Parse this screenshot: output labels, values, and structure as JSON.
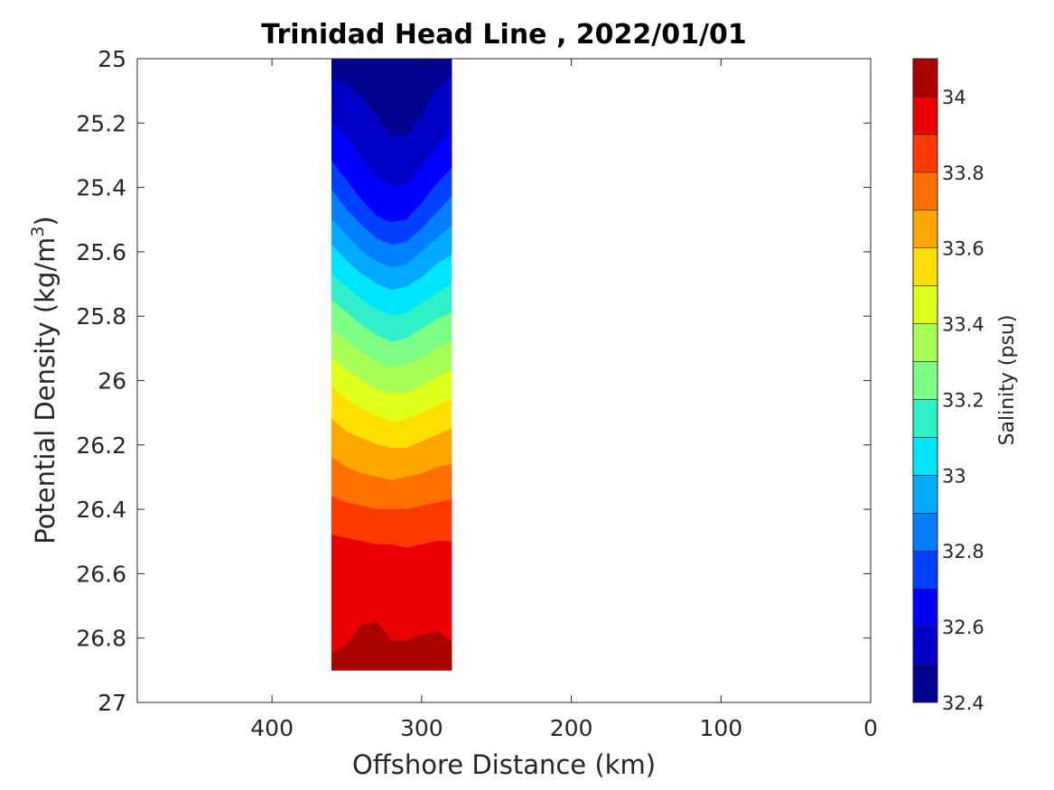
{
  "chart_data": {
    "type": "heatmap",
    "subtype": "filled-contour",
    "title": "Trinidad Head Line , 2022/01/01",
    "xlabel": "Offshore Distance (km)",
    "ylabel_main": "Potential Density (kg/m",
    "ylabel_sup": "3",
    "ylabel_close": ")",
    "xlim": [
      490,
      0
    ],
    "x_reversed": true,
    "ylim": [
      25,
      27
    ],
    "y_reversed": true,
    "x_ticks": [
      400,
      300,
      200,
      100,
      0
    ],
    "x_tick_labels": [
      "400",
      "300",
      "200",
      "100",
      "0"
    ],
    "y_ticks": [
      25,
      25.2,
      25.4,
      25.6,
      25.8,
      26,
      26.2,
      26.4,
      26.6,
      26.8,
      27
    ],
    "y_tick_labels": [
      "25",
      "25.2",
      "25.4",
      "25.6",
      "25.8",
      "26",
      "26.2",
      "26.4",
      "26.6",
      "26.8",
      "27"
    ],
    "data_extent": {
      "x": [
        360,
        280
      ],
      "y": [
        25,
        26.9
      ]
    },
    "colorbar": {
      "label": "Salinity (psu)",
      "range": [
        32.4,
        34.1
      ],
      "ticks": [
        32.4,
        32.6,
        32.8,
        33,
        33.2,
        33.4,
        33.6,
        33.8,
        34
      ],
      "tick_labels": [
        "32.4",
        "32.6",
        "32.8",
        "33",
        "33.2",
        "33.4",
        "33.6",
        "33.8",
        "34"
      ],
      "levels": [
        32.4,
        32.5,
        32.6,
        32.7,
        32.8,
        32.9,
        33.0,
        33.1,
        33.2,
        33.3,
        33.4,
        33.5,
        33.6,
        33.7,
        33.8,
        33.9,
        34.0,
        34.1
      ],
      "colors": [
        "#00008f",
        "#0000c8",
        "#0000ff",
        "#0040ff",
        "#0080ff",
        "#00aaff",
        "#00e5ff",
        "#2ff0c8",
        "#7cff84",
        "#a8ff55",
        "#e0ff1a",
        "#ffe000",
        "#ffa600",
        "#ff7000",
        "#ff3a00",
        "#ea0000",
        "#aa0000"
      ]
    },
    "grid": false,
    "salinity_boundaries": [
      {
        "level": 32.5,
        "points": [
          [
            360,
            25.06
          ],
          [
            350,
            25.08
          ],
          [
            340,
            25.12
          ],
          [
            330,
            25.18
          ],
          [
            320,
            25.24
          ],
          [
            310,
            25.24
          ],
          [
            300,
            25.18
          ],
          [
            290,
            25.1
          ],
          [
            280,
            25.05
          ]
        ]
      },
      {
        "level": 32.6,
        "points": [
          [
            360,
            25.2
          ],
          [
            350,
            25.25
          ],
          [
            340,
            25.31
          ],
          [
            330,
            25.37
          ],
          [
            320,
            25.4
          ],
          [
            310,
            25.39
          ],
          [
            300,
            25.34
          ],
          [
            290,
            25.28
          ],
          [
            280,
            25.22
          ]
        ]
      },
      {
        "level": 32.7,
        "points": [
          [
            360,
            25.32
          ],
          [
            350,
            25.38
          ],
          [
            340,
            25.44
          ],
          [
            330,
            25.49
          ],
          [
            320,
            25.51
          ],
          [
            310,
            25.5
          ],
          [
            300,
            25.45
          ],
          [
            290,
            25.39
          ],
          [
            280,
            25.34
          ]
        ]
      },
      {
        "level": 32.8,
        "points": [
          [
            360,
            25.41
          ],
          [
            350,
            25.47
          ],
          [
            340,
            25.52
          ],
          [
            330,
            25.56
          ],
          [
            320,
            25.58
          ],
          [
            310,
            25.57
          ],
          [
            300,
            25.53
          ],
          [
            290,
            25.48
          ],
          [
            280,
            25.43
          ]
        ]
      },
      {
        "level": 32.9,
        "points": [
          [
            360,
            25.5
          ],
          [
            350,
            25.55
          ],
          [
            340,
            25.6
          ],
          [
            330,
            25.63
          ],
          [
            320,
            25.65
          ],
          [
            310,
            25.64
          ],
          [
            300,
            25.6
          ],
          [
            290,
            25.56
          ],
          [
            280,
            25.52
          ]
        ]
      },
      {
        "level": 33.0,
        "points": [
          [
            360,
            25.58
          ],
          [
            350,
            25.63
          ],
          [
            340,
            25.67
          ],
          [
            330,
            25.7
          ],
          [
            320,
            25.72
          ],
          [
            310,
            25.71
          ],
          [
            300,
            25.68
          ],
          [
            290,
            25.64
          ],
          [
            280,
            25.61
          ]
        ]
      },
      {
        "level": 33.1,
        "points": [
          [
            360,
            25.67
          ],
          [
            350,
            25.71
          ],
          [
            340,
            25.75
          ],
          [
            330,
            25.78
          ],
          [
            320,
            25.8
          ],
          [
            310,
            25.79
          ],
          [
            300,
            25.76
          ],
          [
            290,
            25.73
          ],
          [
            280,
            25.7
          ]
        ]
      },
      {
        "level": 33.2,
        "points": [
          [
            360,
            25.75
          ],
          [
            350,
            25.79
          ],
          [
            340,
            25.83
          ],
          [
            330,
            25.86
          ],
          [
            320,
            25.88
          ],
          [
            310,
            25.87
          ],
          [
            300,
            25.84
          ],
          [
            290,
            25.81
          ],
          [
            280,
            25.79
          ]
        ]
      },
      {
        "level": 33.3,
        "points": [
          [
            360,
            25.84
          ],
          [
            350,
            25.88
          ],
          [
            340,
            25.91
          ],
          [
            330,
            25.94
          ],
          [
            320,
            25.96
          ],
          [
            310,
            25.95
          ],
          [
            300,
            25.93
          ],
          [
            290,
            25.9
          ],
          [
            280,
            25.88
          ]
        ]
      },
      {
        "level": 33.4,
        "points": [
          [
            360,
            25.93
          ],
          [
            350,
            25.97
          ],
          [
            340,
            26.0
          ],
          [
            330,
            26.03
          ],
          [
            320,
            26.04
          ],
          [
            310,
            26.04
          ],
          [
            300,
            26.02
          ],
          [
            290,
            25.99
          ],
          [
            280,
            25.97
          ]
        ]
      },
      {
        "level": 33.5,
        "points": [
          [
            360,
            26.02
          ],
          [
            350,
            26.06
          ],
          [
            340,
            26.09
          ],
          [
            330,
            26.11
          ],
          [
            320,
            26.13
          ],
          [
            310,
            26.12
          ],
          [
            300,
            26.1
          ],
          [
            290,
            26.08
          ],
          [
            280,
            26.06
          ]
        ]
      },
      {
        "level": 33.6,
        "points": [
          [
            360,
            26.12
          ],
          [
            350,
            26.16
          ],
          [
            340,
            26.18
          ],
          [
            330,
            26.2
          ],
          [
            320,
            26.21
          ],
          [
            310,
            26.21
          ],
          [
            300,
            26.19
          ],
          [
            290,
            26.17
          ],
          [
            280,
            26.15
          ]
        ]
      },
      {
        "level": 33.7,
        "points": [
          [
            360,
            26.24
          ],
          [
            350,
            26.27
          ],
          [
            340,
            26.29
          ],
          [
            330,
            26.3
          ],
          [
            320,
            26.31
          ],
          [
            310,
            26.3
          ],
          [
            300,
            26.29
          ],
          [
            290,
            26.27
          ],
          [
            280,
            26.26
          ]
        ]
      },
      {
        "level": 33.8,
        "points": [
          [
            360,
            26.36
          ],
          [
            350,
            26.38
          ],
          [
            340,
            26.39
          ],
          [
            330,
            26.4
          ],
          [
            320,
            26.4
          ],
          [
            310,
            26.4
          ],
          [
            300,
            26.39
          ],
          [
            290,
            26.38
          ],
          [
            280,
            26.37
          ]
        ]
      },
      {
        "level": 33.9,
        "points": [
          [
            360,
            26.48
          ],
          [
            350,
            26.49
          ],
          [
            340,
            26.5
          ],
          [
            330,
            26.51
          ],
          [
            320,
            26.51
          ],
          [
            310,
            26.52
          ],
          [
            300,
            26.51
          ],
          [
            290,
            26.5
          ],
          [
            280,
            26.5
          ]
        ]
      },
      {
        "level": 34.0,
        "points": [
          [
            360,
            26.85
          ],
          [
            350,
            26.82
          ],
          [
            340,
            26.76
          ],
          [
            330,
            26.75
          ],
          [
            320,
            26.81
          ],
          [
            310,
            26.81
          ],
          [
            300,
            26.79
          ],
          [
            290,
            26.78
          ],
          [
            280,
            26.81
          ]
        ]
      }
    ]
  }
}
